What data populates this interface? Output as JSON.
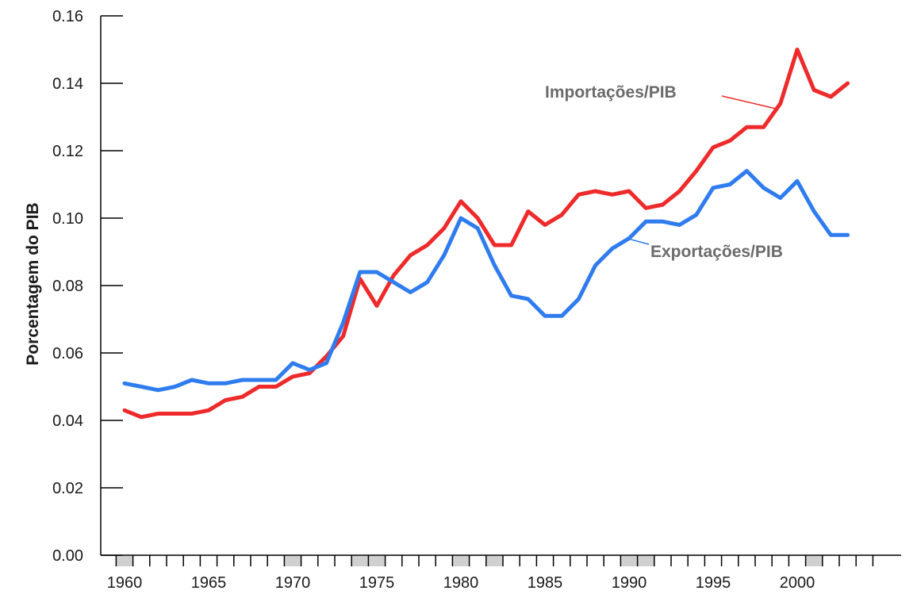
{
  "chart_data": {
    "type": "line",
    "ylabel": "Porcentagem do PIB",
    "xlabel": "",
    "ylim": [
      0.0,
      0.16
    ],
    "xlim": [
      1960,
      2003
    ],
    "y_ticks": [
      "0.00",
      "0.02",
      "0.04",
      "0.06",
      "0.08",
      "0.10",
      "0.12",
      "0.14",
      "0.16"
    ],
    "x_tick_labels": [
      "1960",
      "1965",
      "1970",
      "1975",
      "1980",
      "1985",
      "1990",
      "1995",
      "2000"
    ],
    "recession_shaded_years": [
      1960,
      1970,
      1974,
      1975,
      1980,
      1982,
      1990,
      1991,
      2001
    ],
    "grid": false,
    "legend": "inline labels",
    "x": [
      1960,
      1961,
      1962,
      1963,
      1964,
      1965,
      1966,
      1967,
      1968,
      1969,
      1970,
      1971,
      1972,
      1973,
      1974,
      1975,
      1976,
      1977,
      1978,
      1979,
      1980,
      1981,
      1982,
      1983,
      1984,
      1985,
      1986,
      1987,
      1988,
      1989,
      1990,
      1991,
      1992,
      1993,
      1994,
      1995,
      1996,
      1997,
      1998,
      1999,
      2000,
      2001,
      2002,
      2003
    ],
    "series": [
      {
        "name": "Importações/PIB",
        "color": "#ee2a2a",
        "values": [
          0.043,
          0.041,
          0.042,
          0.042,
          0.042,
          0.043,
          0.046,
          0.047,
          0.05,
          0.05,
          0.053,
          0.054,
          0.059,
          0.065,
          0.082,
          0.074,
          0.083,
          0.089,
          0.092,
          0.097,
          0.105,
          0.1,
          0.092,
          0.092,
          0.102,
          0.098,
          0.101,
          0.107,
          0.108,
          0.107,
          0.108,
          0.103,
          0.104,
          0.108,
          0.114,
          0.121,
          0.123,
          0.127,
          0.127,
          0.134,
          0.15,
          0.138,
          0.136,
          0.14
        ]
      },
      {
        "name": "Exportações/PIB",
        "color": "#2f7cef",
        "values": [
          0.051,
          0.05,
          0.049,
          0.05,
          0.052,
          0.051,
          0.051,
          0.052,
          0.052,
          0.052,
          0.057,
          0.055,
          0.057,
          0.069,
          0.084,
          0.084,
          0.081,
          0.078,
          0.081,
          0.089,
          0.1,
          0.097,
          0.086,
          0.077,
          0.076,
          0.071,
          0.071,
          0.076,
          0.086,
          0.091,
          0.094,
          0.099,
          0.099,
          0.098,
          0.101,
          0.109,
          0.11,
          0.114,
          0.109,
          0.106,
          0.111,
          0.102,
          0.095,
          0.095
        ]
      }
    ]
  },
  "labels": {
    "imports": "Importações/PIB",
    "exports": "Exportações/PIB"
  }
}
